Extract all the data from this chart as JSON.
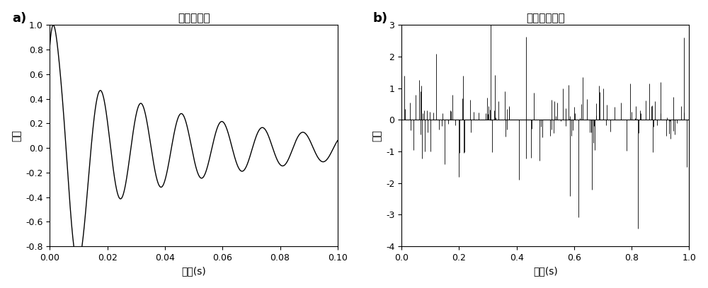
{
  "title_a": "构造的子波",
  "title_b": "反射系数序列",
  "xlabel_a": "时间(s)",
  "xlabel_b": "时间(s)",
  "ylabel_a": "振幅",
  "ylabel_b": "振幅",
  "label_a": "a)",
  "label_b": "b)",
  "xlim_a": [
    0,
    0.1
  ],
  "xlim_b": [
    0,
    1
  ],
  "ylim_a": [
    -0.8,
    1.0
  ],
  "ylim_b": [
    -4,
    3
  ],
  "xticks_a": [
    0,
    0.02,
    0.04,
    0.06,
    0.08,
    0.1
  ],
  "xticks_b": [
    0,
    0.2,
    0.4,
    0.6,
    0.8,
    1.0
  ],
  "yticks_a": [
    -0.8,
    -0.6,
    -0.4,
    -0.2,
    0.0,
    0.2,
    0.4,
    0.6,
    0.8,
    1.0
  ],
  "yticks_b": [
    -4,
    -3,
    -2,
    -1,
    0,
    1,
    2,
    3
  ],
  "line_color": "#000000",
  "background_color": "#ffffff"
}
